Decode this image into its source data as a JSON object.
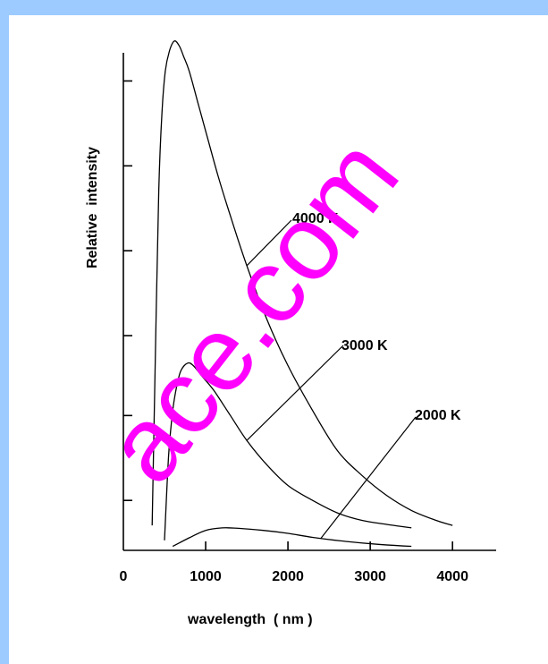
{
  "chart_data": {
    "type": "line",
    "title": "",
    "xlabel": "wavelength  ( nm )",
    "ylabel": "Relative  intensity",
    "xlim": [
      0,
      4400
    ],
    "ylim": [
      0,
      1.0
    ],
    "x_ticks": [
      0,
      1000,
      2000,
      3000,
      4000
    ],
    "x_tick_labels": [
      "0",
      "1000",
      "2000",
      "3000",
      "4000"
    ],
    "y_tick_values": [
      0.1,
      0.27,
      0.43,
      0.6,
      0.77,
      0.94
    ],
    "grid": false,
    "series": [
      {
        "name": "4000 K",
        "x": [
          350,
          390,
          430,
          470,
          510,
          560,
          620,
          680,
          730,
          800,
          900,
          1000,
          1150,
          1300,
          1500,
          1750,
          2000,
          2300,
          2600,
          2900,
          3200,
          3500,
          3800,
          4000
        ],
        "y": [
          0.05,
          0.4,
          0.72,
          0.88,
          0.96,
          1.0,
          1.02,
          1.01,
          0.99,
          0.96,
          0.9,
          0.84,
          0.75,
          0.67,
          0.57,
          0.46,
          0.37,
          0.28,
          0.2,
          0.15,
          0.11,
          0.08,
          0.06,
          0.05
        ]
      },
      {
        "name": "3000 K",
        "x": [
          500,
          550,
          600,
          650,
          700,
          780,
          850,
          950,
          1100,
          1300,
          1500,
          1750,
          2000,
          2300,
          2600,
          2900,
          3200,
          3500
        ],
        "y": [
          0.02,
          0.19,
          0.28,
          0.33,
          0.36,
          0.375,
          0.37,
          0.35,
          0.32,
          0.27,
          0.22,
          0.17,
          0.13,
          0.1,
          0.075,
          0.06,
          0.052,
          0.045
        ]
      },
      {
        "name": "2000 K",
        "x": [
          600,
          800,
          1000,
          1200,
          1400,
          1700,
          2000,
          2300,
          2700,
          3100,
          3500
        ],
        "y": [
          0.008,
          0.025,
          0.04,
          0.045,
          0.044,
          0.04,
          0.034,
          0.026,
          0.018,
          0.012,
          0.008
        ]
      }
    ],
    "annotations": [
      "4000 K",
      "3000 K",
      "2000 K"
    ]
  },
  "watermark": {
    "text": "ace.com",
    "color": "#ff00ff"
  }
}
